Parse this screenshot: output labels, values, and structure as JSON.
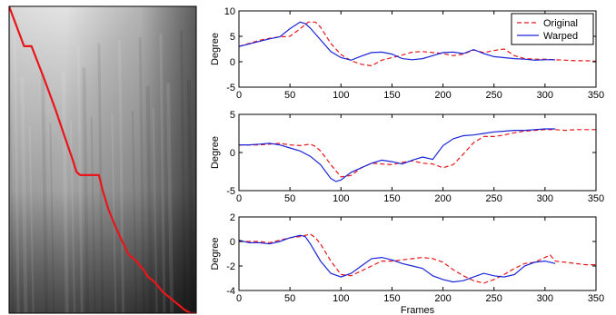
{
  "chart_data": [
    {
      "type": "heatmap",
      "description_free": true,
      "x_range": [
        0,
        1
      ],
      "y_range": [
        0,
        1
      ],
      "path_color": "#e8161a",
      "path": {
        "x": [
          0,
          0.08,
          0.12,
          0.19,
          0.25,
          0.3,
          0.34,
          0.36,
          0.38,
          0.48,
          0.5,
          0.53,
          0.57,
          0.6,
          0.64,
          0.68,
          0.72,
          0.74,
          0.78,
          0.82,
          0.86,
          0.9,
          0.94,
          0.97,
          1.0
        ],
        "y": [
          0,
          0.13,
          0.13,
          0.24,
          0.34,
          0.43,
          0.5,
          0.54,
          0.55,
          0.55,
          0.6,
          0.66,
          0.72,
          0.76,
          0.81,
          0.83,
          0.86,
          0.88,
          0.9,
          0.93,
          0.95,
          0.97,
          0.99,
          1.0,
          1.0
        ]
      }
    },
    {
      "type": "line",
      "ylabel": "Degree",
      "xlim": [
        0,
        350
      ],
      "ylim": [
        -5,
        10
      ],
      "xticks": [
        "0",
        "50",
        "100",
        "150",
        "200",
        "250",
        "300",
        "350"
      ],
      "yticks": [
        "-5",
        "0",
        "5",
        "10"
      ],
      "legend": {
        "placement": "top-right",
        "entries": [
          "Original",
          "Warped"
        ]
      },
      "series": [
        {
          "name": "Original",
          "color": "#e8161a",
          "style": "dashed",
          "x": [
            0,
            10,
            20,
            30,
            40,
            50,
            60,
            68,
            75,
            80,
            90,
            100,
            110,
            120,
            130,
            140,
            150,
            160,
            170,
            180,
            190,
            200,
            210,
            220,
            230,
            240,
            250,
            260,
            270,
            280,
            290,
            300,
            310,
            320,
            330,
            340,
            350
          ],
          "y": [
            3,
            3.6,
            4.2,
            4.6,
            4.9,
            5.0,
            6.5,
            7.8,
            7.8,
            6.8,
            3.6,
            1.4,
            0.2,
            -0.5,
            -0.8,
            0.3,
            0.8,
            1.3,
            1.9,
            2.0,
            1.8,
            1.6,
            1.2,
            1.5,
            2.3,
            1.8,
            2.2,
            2.5,
            1.2,
            0.6,
            0.5,
            0.5,
            0.4,
            0.3,
            0.2,
            0.2,
            0.1
          ]
        },
        {
          "name": "Warped",
          "color": "#1a24d6",
          "style": "solid",
          "x": [
            0,
            10,
            20,
            30,
            40,
            50,
            60,
            65,
            70,
            80,
            90,
            100,
            110,
            120,
            130,
            140,
            150,
            160,
            170,
            180,
            190,
            200,
            210,
            220,
            230,
            240,
            250,
            260,
            270,
            280,
            290,
            300,
            310
          ],
          "y": [
            3,
            3.5,
            4.0,
            4.5,
            4.9,
            6.5,
            7.8,
            7.5,
            6.6,
            4.3,
            2.0,
            0.8,
            0.3,
            1.1,
            1.8,
            1.9,
            1.5,
            0.6,
            0.4,
            0.6,
            1.2,
            1.8,
            1.9,
            1.6,
            2.4,
            1.6,
            1.0,
            0.8,
            0.6,
            0.5,
            0.3,
            0.4,
            0.4
          ]
        }
      ]
    },
    {
      "type": "line",
      "ylabel": "Degree",
      "xlim": [
        0,
        350
      ],
      "ylim": [
        -5,
        5
      ],
      "xticks": [
        "0",
        "50",
        "100",
        "150",
        "200",
        "250",
        "300",
        "350"
      ],
      "yticks": [
        "-5",
        "0",
        "5"
      ],
      "series": [
        {
          "name": "Original",
          "color": "#e8161a",
          "style": "dashed",
          "x": [
            0,
            10,
            20,
            30,
            40,
            50,
            60,
            70,
            75,
            80,
            90,
            100,
            110,
            120,
            130,
            140,
            150,
            160,
            170,
            180,
            190,
            200,
            210,
            220,
            230,
            240,
            250,
            260,
            270,
            280,
            290,
            300,
            310,
            320,
            330,
            340,
            350
          ],
          "y": [
            1,
            1.0,
            1.0,
            1.1,
            1.2,
            1.0,
            0.9,
            1.1,
            0.8,
            0.2,
            -1.6,
            -3.2,
            -3.0,
            -2.0,
            -1.4,
            -1.5,
            -1.6,
            -1.3,
            -1.1,
            -1.4,
            -1.5,
            -2.0,
            -1.6,
            -0.2,
            1.3,
            2.1,
            2.1,
            2.3,
            2.6,
            2.8,
            2.9,
            3.0,
            3.0,
            2.9,
            3.0,
            3.0,
            3.0
          ]
        },
        {
          "name": "Warped",
          "color": "#1a24d6",
          "style": "solid",
          "x": [
            0,
            10,
            20,
            30,
            40,
            50,
            60,
            70,
            80,
            90,
            95,
            100,
            110,
            120,
            130,
            140,
            150,
            160,
            170,
            180,
            190,
            200,
            210,
            220,
            230,
            240,
            250,
            260,
            270,
            280,
            290,
            300,
            310
          ],
          "y": [
            1,
            1.0,
            1.1,
            1.2,
            1.0,
            0.6,
            0.2,
            -0.5,
            -1.6,
            -3.4,
            -3.8,
            -3.6,
            -2.6,
            -2.0,
            -1.4,
            -1.0,
            -1.2,
            -1.5,
            -1.0,
            -0.6,
            -0.9,
            0.9,
            1.8,
            2.2,
            2.3,
            2.5,
            2.7,
            2.8,
            2.9,
            2.9,
            3.0,
            3.1,
            3.1
          ]
        }
      ]
    },
    {
      "type": "line",
      "ylabel": "Degree",
      "xlabel": "Frames",
      "xlim": [
        0,
        350
      ],
      "ylim": [
        -4,
        2
      ],
      "xticks": [
        "0",
        "50",
        "100",
        "150",
        "200",
        "250",
        "300",
        "350"
      ],
      "yticks": [
        "-4",
        "-2",
        "0",
        "2"
      ],
      "series": [
        {
          "name": "Original",
          "color": "#e8161a",
          "style": "dashed",
          "x": [
            0,
            10,
            20,
            30,
            40,
            50,
            60,
            70,
            75,
            80,
            90,
            100,
            110,
            120,
            130,
            140,
            150,
            160,
            170,
            180,
            190,
            200,
            210,
            220,
            230,
            240,
            250,
            260,
            270,
            280,
            290,
            300,
            305,
            310,
            320,
            330,
            340,
            350
          ],
          "y": [
            0,
            0,
            0,
            -0.1,
            0.1,
            0.3,
            0.4,
            0.6,
            0.3,
            -0.2,
            -1.6,
            -2.7,
            -2.8,
            -2.4,
            -2.0,
            -1.6,
            -1.6,
            -1.5,
            -1.4,
            -1.3,
            -1.4,
            -1.7,
            -2.3,
            -2.8,
            -3.2,
            -3.4,
            -3.1,
            -2.7,
            -2.2,
            -1.8,
            -1.7,
            -1.3,
            -1.1,
            -1.6,
            -1.7,
            -1.8,
            -1.9,
            -1.9
          ]
        },
        {
          "name": "Warped",
          "color": "#1a24d6",
          "style": "solid",
          "x": [
            0,
            10,
            20,
            30,
            40,
            50,
            60,
            65,
            70,
            80,
            90,
            100,
            110,
            120,
            130,
            140,
            150,
            160,
            170,
            180,
            190,
            200,
            210,
            220,
            230,
            240,
            250,
            260,
            270,
            280,
            290,
            300,
            310
          ],
          "y": [
            0.1,
            -0.1,
            -0.1,
            -0.2,
            0.0,
            0.3,
            0.5,
            0.4,
            -0.2,
            -1.6,
            -2.6,
            -2.9,
            -2.6,
            -2.0,
            -1.4,
            -1.3,
            -1.5,
            -1.8,
            -2.0,
            -2.2,
            -2.8,
            -3.1,
            -3.3,
            -3.2,
            -2.9,
            -2.6,
            -2.8,
            -2.9,
            -2.7,
            -2.0,
            -1.7,
            -1.6,
            -1.8
          ]
        }
      ]
    }
  ]
}
